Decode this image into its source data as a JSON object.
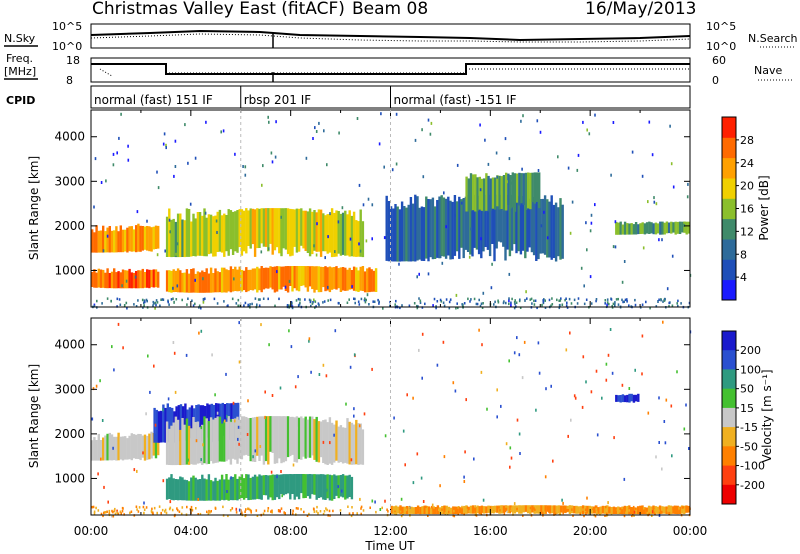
{
  "header": {
    "station": "Christmas Valley East (fitACF)",
    "beam": "Beam 08",
    "date": "16/May/2013"
  },
  "labels": {
    "nsky": "N.Sky",
    "nsearch": "N.Search",
    "freq_line1": "Freq.",
    "freq_line2": "[MHz]",
    "nave": "Nave",
    "cpid": "CPID",
    "slant_range": "Slant Range [km]",
    "time_axis": "Time UT",
    "power_label": "Power [dB]",
    "velocity_label": "Velocity [m s⁻¹]"
  },
  "noise_axis": {
    "left_ticks": [
      "10^5",
      "10^0"
    ],
    "right_ticks": [
      "10^5",
      "10^0"
    ]
  },
  "freq_axis": {
    "left_ticks": [
      "18",
      "8"
    ],
    "right_ticks": [
      "60",
      "0"
    ]
  },
  "cpid_segments": [
    {
      "label": "normal (fast) 151 IF",
      "start_hour": 0,
      "end_hour": 6
    },
    {
      "label": "rbsp 201 IF",
      "start_hour": 6,
      "end_hour": 12
    },
    {
      "label": "normal (fast) -151 IF",
      "start_hour": 12,
      "end_hour": 24
    }
  ],
  "chart_data": [
    {
      "type": "heatmap",
      "panel": "power",
      "xlabel": "Time UT",
      "ylabel": "Slant Range [km]",
      "x_ticks": [
        "00:00",
        "04:00",
        "08:00",
        "12:00",
        "16:00",
        "20:00",
        "00:00"
      ],
      "xlim_hours": [
        0,
        24
      ],
      "ylim": [
        180,
        4600
      ],
      "y_ticks": [
        1000,
        2000,
        3000,
        4000
      ],
      "colorbar": {
        "label": "Power [dB]",
        "range": [
          0,
          32
        ],
        "ticks": [
          4,
          8,
          12,
          16,
          20,
          24,
          28
        ],
        "colors": [
          "#1a1aff",
          "#1f4fb8",
          "#2e6b9a",
          "#3f8a6a",
          "#8bbf2c",
          "#f0d000",
          "#ffa000",
          "#ff6a00",
          "#ff2000"
        ]
      },
      "echo_bands": [
        {
          "t_start": 0,
          "t_end": 2.8,
          "r_start": 1400,
          "r_end": 2050,
          "power": 24
        },
        {
          "t_start": 0,
          "t_end": 2.8,
          "r_start": 600,
          "r_end": 1050,
          "power": 26
        },
        {
          "t_start": 3,
          "t_end": 11.5,
          "r_start": 500,
          "r_end": 1100,
          "power": 24
        },
        {
          "t_start": 3,
          "t_end": 11,
          "r_start": 1300,
          "r_end": 2400,
          "power": 18
        },
        {
          "t_start": 11.8,
          "t_end": 19,
          "r_start": 1200,
          "r_end": 2700,
          "power": 8
        },
        {
          "t_start": 15,
          "t_end": 18,
          "r_start": 2300,
          "r_end": 3200,
          "power": 14
        },
        {
          "t_start": 21,
          "t_end": 24,
          "r_start": 1800,
          "r_end": 2100,
          "power": 14
        }
      ]
    },
    {
      "type": "heatmap",
      "panel": "velocity",
      "xlabel": "Time UT",
      "ylabel": "Slant Range [km]",
      "x_ticks": [
        "00:00",
        "04:00",
        "08:00",
        "12:00",
        "16:00",
        "20:00",
        "00:00"
      ],
      "xlim_hours": [
        0,
        24
      ],
      "ylim": [
        180,
        4600
      ],
      "y_ticks": [
        1000,
        2000,
        3000,
        4000
      ],
      "colorbar": {
        "label": "Velocity [m s⁻¹]",
        "ticks": [
          200,
          100,
          50,
          15,
          -15,
          -50,
          -100,
          -200
        ],
        "colors": [
          "#1a1acc",
          "#2a50d0",
          "#2f9a80",
          "#44c030",
          "#c8c8c8",
          "#f0b020",
          "#ff8000",
          "#ff4010",
          "#ee0000"
        ]
      },
      "echo_bands": [
        {
          "t_start": 0,
          "t_end": 2.8,
          "r_start": 1400,
          "r_end": 2050,
          "velocity": 0
        },
        {
          "t_start": 2.5,
          "t_end": 6,
          "r_start": 1800,
          "r_end": 2700,
          "velocity": 200
        },
        {
          "t_start": 3,
          "t_end": 10.5,
          "r_start": 500,
          "r_end": 1100,
          "velocity": 60
        },
        {
          "t_start": 3,
          "t_end": 11,
          "r_start": 1300,
          "r_end": 2400,
          "velocity": 0
        },
        {
          "t_start": 12,
          "t_end": 24,
          "r_start": 200,
          "r_end": 400,
          "velocity": -50
        },
        {
          "t_start": 21,
          "t_end": 22,
          "r_start": 2700,
          "r_end": 2900,
          "velocity": 200
        }
      ]
    }
  ]
}
